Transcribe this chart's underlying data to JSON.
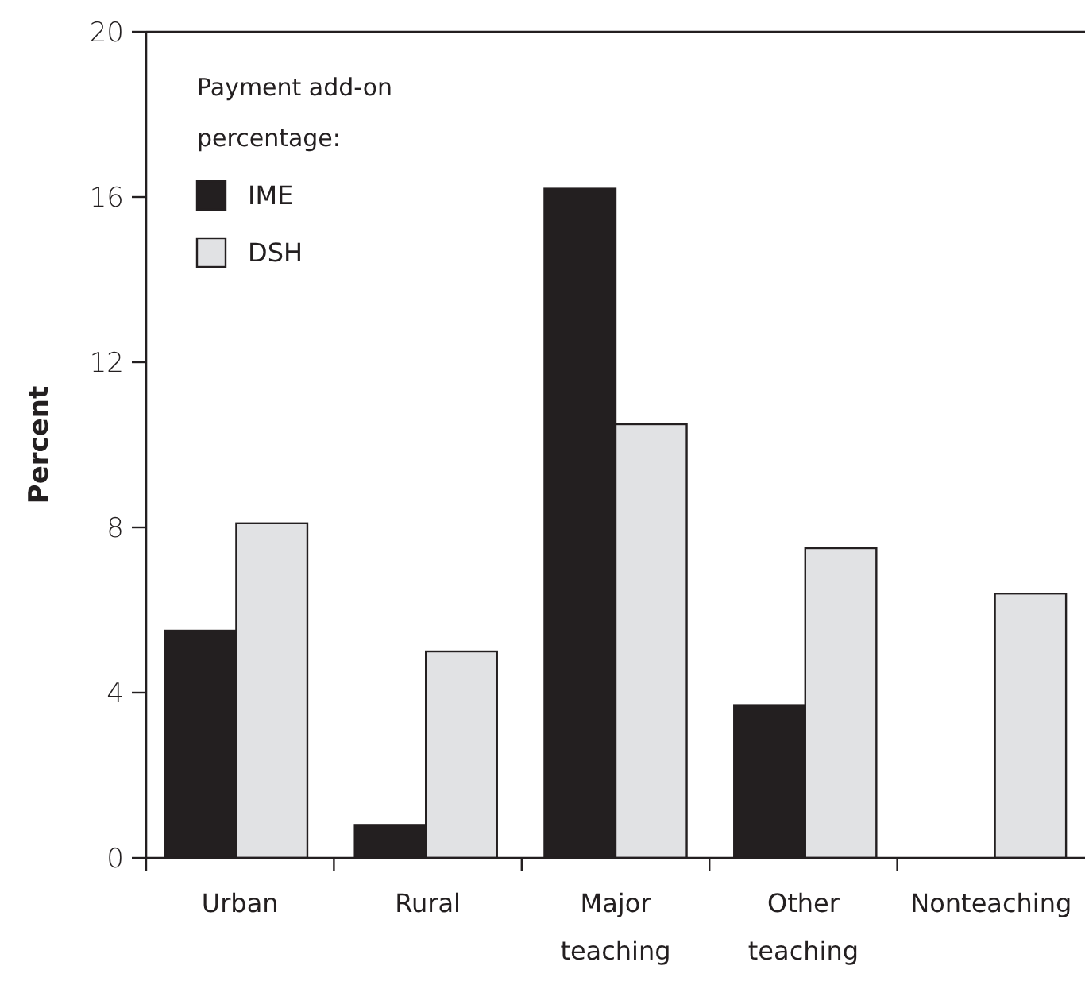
{
  "chart_data": {
    "type": "bar",
    "ylabel": "Percent",
    "legend_title": "Payment add-on percentage:",
    "categories": [
      "Urban",
      "Rural",
      "Major teaching",
      "Other teaching",
      "Nonteaching"
    ],
    "series": [
      {
        "name": "IME",
        "color": "#231f20",
        "values": [
          5.5,
          0.8,
          16.2,
          3.7,
          null
        ]
      },
      {
        "name": "DSH",
        "color": "#e1e2e4",
        "values": [
          8.1,
          5.0,
          10.5,
          7.5,
          6.4
        ]
      }
    ],
    "ylim": [
      0,
      20
    ],
    "yticks": [
      0,
      4,
      8,
      12,
      16,
      20
    ],
    "legend": "top left",
    "grid": false
  }
}
